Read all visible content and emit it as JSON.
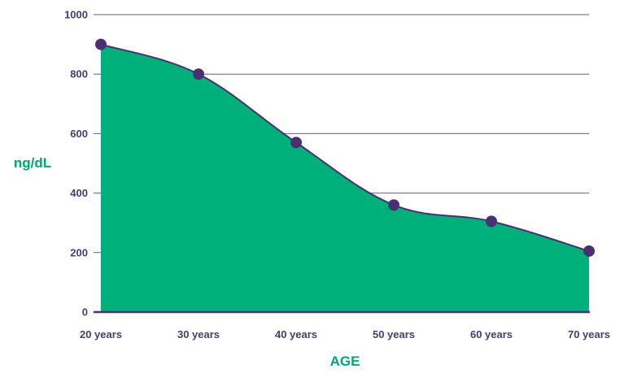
{
  "chart_data": {
    "type": "area",
    "categories": [
      "20 years",
      "30 years",
      "40 years",
      "50 years",
      "60 years",
      "70 years"
    ],
    "values": [
      900,
      800,
      570,
      360,
      305,
      205
    ],
    "title": "",
    "xlabel": "AGE",
    "ylabel": "ng/dL",
    "ylim": [
      0,
      1000
    ],
    "yticks": [
      0,
      200,
      400,
      600,
      800,
      1000
    ],
    "grid": true,
    "smooth": true,
    "colors": {
      "fill": "#00b07a",
      "line": "#4b2f73",
      "marker": "#4b2f73",
      "grid": "#6a5c8c",
      "tick_text": "#4b3a6e",
      "axis_title": "#00a870"
    }
  }
}
